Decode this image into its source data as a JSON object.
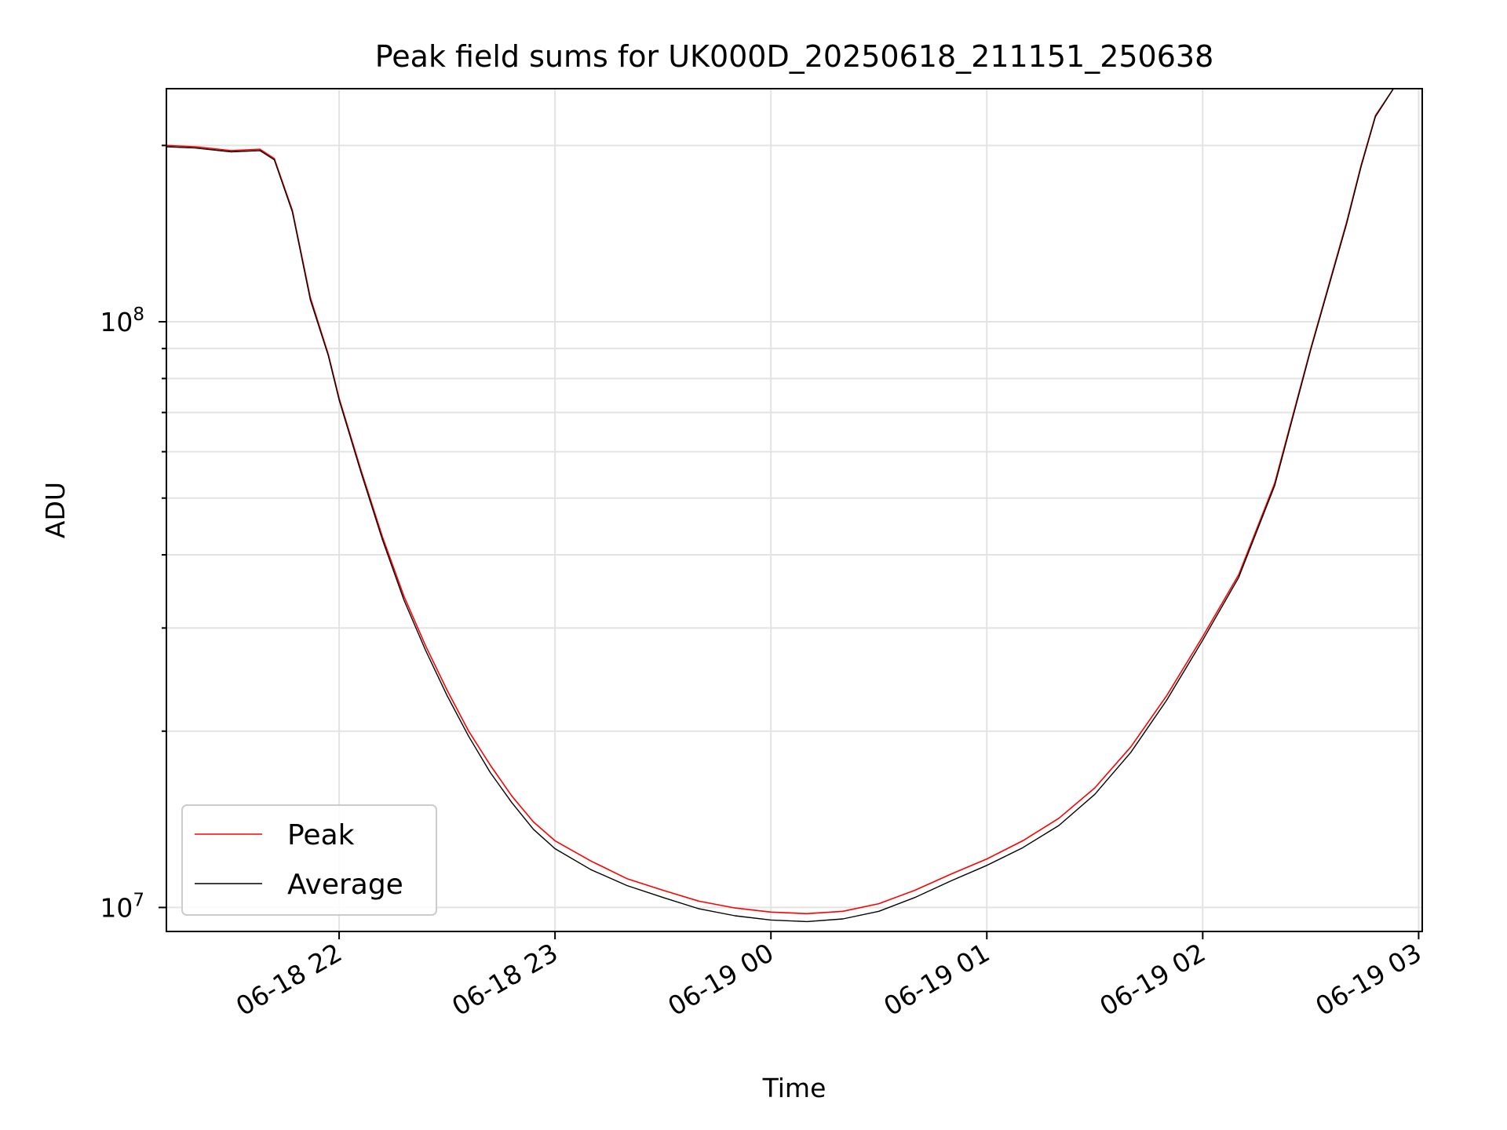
{
  "chart_data": {
    "type": "line",
    "title": "Peak field sums for UK000D_20250618_211151_250638",
    "xlabel": "Time",
    "ylabel": "ADU",
    "y_scale": "log",
    "ylim": [
      9100000,
      250000000
    ],
    "xlim": [
      "06-18 21:12",
      "06-19 03:01"
    ],
    "x_ticks": [
      {
        "value": "06-18 22:00",
        "label": "06-18 22"
      },
      {
        "value": "06-18 23:00",
        "label": "06-18 23"
      },
      {
        "value": "06-19 00:00",
        "label": "06-19 00"
      },
      {
        "value": "06-19 01:00",
        "label": "06-19 01"
      },
      {
        "value": "06-19 02:00",
        "label": "06-19 02"
      },
      {
        "value": "06-19 03:00",
        "label": "06-19 03"
      }
    ],
    "y_ticks": [
      {
        "value": 10000000,
        "base": "10",
        "exp": "7"
      },
      {
        "value": 100000000,
        "base": "10",
        "exp": "8"
      }
    ],
    "grid": true,
    "legend_position": "lower-left",
    "series": [
      {
        "name": "Peak",
        "color": "#ff0000",
        "points": [
          [
            "06-18 21:12",
            200000000
          ],
          [
            "06-18 21:20",
            199000000
          ],
          [
            "06-18 21:30",
            196000000
          ],
          [
            "06-18 21:38",
            197000000
          ],
          [
            "06-18 21:42",
            190000000
          ],
          [
            "06-18 21:47",
            155000000
          ],
          [
            "06-18 21:52",
            110000000
          ],
          [
            "06-18 21:57",
            88000000
          ],
          [
            "06-18 22:00",
            74000000
          ],
          [
            "06-18 22:06",
            56000000
          ],
          [
            "06-18 22:12",
            43000000
          ],
          [
            "06-18 22:18",
            34000000
          ],
          [
            "06-18 22:24",
            28000000
          ],
          [
            "06-18 22:30",
            23500000
          ],
          [
            "06-18 22:36",
            20000000
          ],
          [
            "06-18 22:42",
            17500000
          ],
          [
            "06-18 22:48",
            15500000
          ],
          [
            "06-18 22:54",
            14000000
          ],
          [
            "06-18 23:00",
            13000000
          ],
          [
            "06-18 23:10",
            12000000
          ],
          [
            "06-18 23:20",
            11200000
          ],
          [
            "06-18 23:30",
            10700000
          ],
          [
            "06-18 23:40",
            10250000
          ],
          [
            "06-18 23:50",
            9980000
          ],
          [
            "06-19 00:00",
            9820000
          ],
          [
            "06-19 00:10",
            9760000
          ],
          [
            "06-19 00:20",
            9850000
          ],
          [
            "06-19 00:30",
            10150000
          ],
          [
            "06-19 00:40",
            10700000
          ],
          [
            "06-19 00:50",
            11400000
          ],
          [
            "06-19 01:00",
            12100000
          ],
          [
            "06-19 01:10",
            13000000
          ],
          [
            "06-19 01:20",
            14200000
          ],
          [
            "06-19 01:30",
            16000000
          ],
          [
            "06-19 01:40",
            18800000
          ],
          [
            "06-19 01:50",
            23000000
          ],
          [
            "06-19 02:00",
            29000000
          ],
          [
            "06-19 02:10",
            37000000
          ],
          [
            "06-19 02:20",
            53000000
          ],
          [
            "06-19 02:30",
            90000000
          ],
          [
            "06-19 02:40",
            148000000
          ],
          [
            "06-19 02:44",
            185000000
          ],
          [
            "06-19 02:48",
            225000000
          ],
          [
            "06-19 02:53",
            250000000
          ],
          [
            "06-19 03:01",
            250000000
          ]
        ]
      },
      {
        "name": "Average",
        "color": "#000000",
        "points": [
          [
            "06-18 21:12",
            199000000
          ],
          [
            "06-18 21:20",
            198000000
          ],
          [
            "06-18 21:30",
            195000000
          ],
          [
            "06-18 21:38",
            196000000
          ],
          [
            "06-18 21:42",
            189000000
          ],
          [
            "06-18 21:47",
            154000000
          ],
          [
            "06-18 21:52",
            109000000
          ],
          [
            "06-18 21:57",
            87500000
          ],
          [
            "06-18 22:00",
            73500000
          ],
          [
            "06-18 22:06",
            55500000
          ],
          [
            "06-18 22:12",
            42500000
          ],
          [
            "06-18 22:18",
            33500000
          ],
          [
            "06-18 22:24",
            27500000
          ],
          [
            "06-18 22:30",
            23000000
          ],
          [
            "06-18 22:36",
            19600000
          ],
          [
            "06-18 22:42",
            17000000
          ],
          [
            "06-18 22:48",
            15100000
          ],
          [
            "06-18 22:54",
            13600000
          ],
          [
            "06-18 23:00",
            12600000
          ],
          [
            "06-18 23:10",
            11600000
          ],
          [
            "06-18 23:20",
            10900000
          ],
          [
            "06-18 23:30",
            10400000
          ],
          [
            "06-18 23:40",
            9950000
          ],
          [
            "06-18 23:50",
            9680000
          ],
          [
            "06-19 00:00",
            9520000
          ],
          [
            "06-19 00:10",
            9460000
          ],
          [
            "06-19 00:20",
            9560000
          ],
          [
            "06-19 00:30",
            9850000
          ],
          [
            "06-19 00:40",
            10400000
          ],
          [
            "06-19 00:50",
            11100000
          ],
          [
            "06-19 01:00",
            11800000
          ],
          [
            "06-19 01:10",
            12650000
          ],
          [
            "06-19 01:20",
            13800000
          ],
          [
            "06-19 01:30",
            15600000
          ],
          [
            "06-19 01:40",
            18400000
          ],
          [
            "06-19 01:50",
            22600000
          ],
          [
            "06-19 02:00",
            28600000
          ],
          [
            "06-19 02:10",
            36600000
          ],
          [
            "06-19 02:20",
            52500000
          ],
          [
            "06-19 02:30",
            89500000
          ],
          [
            "06-19 02:40",
            147000000
          ],
          [
            "06-19 02:44",
            184000000
          ],
          [
            "06-19 02:48",
            224000000
          ],
          [
            "06-19 02:53",
            250000000
          ],
          [
            "06-19 03:01",
            250000000
          ]
        ]
      }
    ]
  }
}
